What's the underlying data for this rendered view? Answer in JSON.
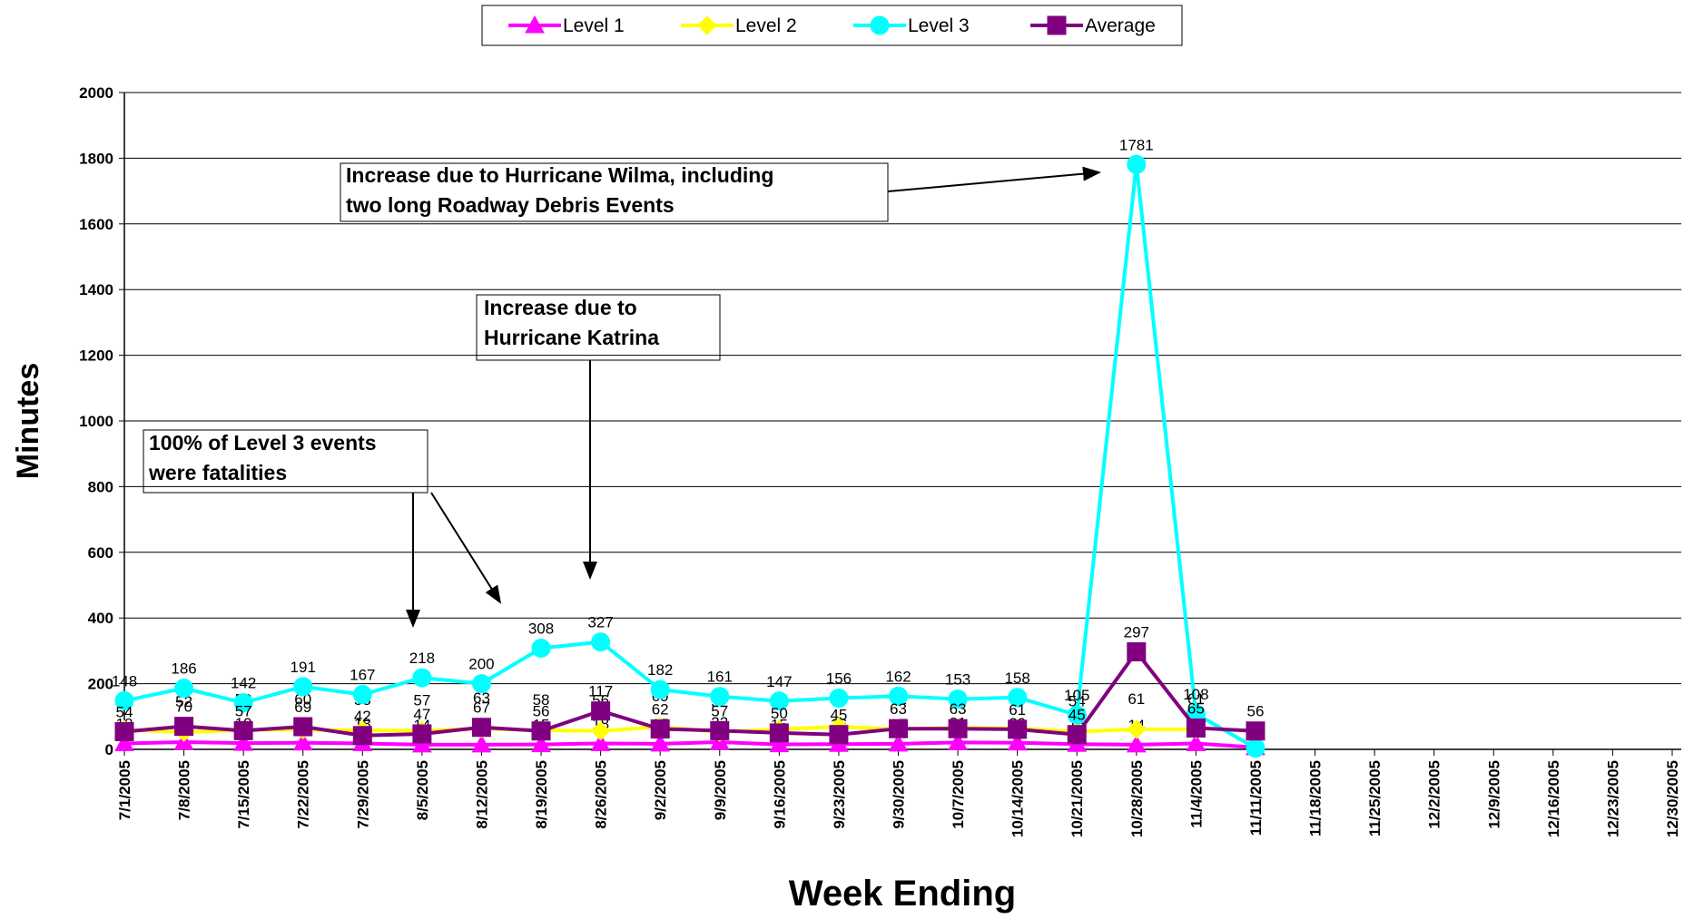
{
  "chart_data": {
    "type": "line",
    "categories": [
      "7/1/2005",
      "7/8/2005",
      "7/15/2005",
      "7/22/2005",
      "7/29/2005",
      "8/5/2005",
      "8/12/2005",
      "8/19/2005",
      "8/26/2005",
      "9/2/2005",
      "9/9/2005",
      "9/16/2005",
      "9/23/2005",
      "9/30/2005",
      "10/7/2005",
      "10/14/2005",
      "10/21/2005",
      "10/28/2005",
      "11/4/2005",
      "11/11/2005",
      "11/18/2005",
      "11/25/2005",
      "12/2/2005",
      "12/9/2005",
      "12/16/2005",
      "12/23/2005",
      "12/30/2005"
    ],
    "series": [
      {
        "name": "Level 1",
        "color": "#ff00ff",
        "marker": "triangle",
        "values": [
          18,
          22,
          19,
          20,
          18,
          14,
          14,
          15,
          18,
          17,
          22,
          15,
          16,
          17,
          21,
          20,
          16,
          14,
          18,
          6,
          null,
          null,
          null,
          null,
          null,
          null,
          null
        ]
      },
      {
        "name": "Level 2",
        "color": "#ffff00",
        "marker": "diamond",
        "values": [
          60,
          52,
          59,
          60,
          58,
          57,
          63,
          58,
          56,
          69,
          52,
          61,
          69,
          61,
          66,
          64,
          54,
          61,
          61,
          null,
          null,
          null,
          null,
          null,
          null,
          null,
          null
        ]
      },
      {
        "name": "Level 3",
        "color": "#00ffff",
        "marker": "circle",
        "values": [
          148,
          186,
          142,
          191,
          167,
          218,
          200,
          308,
          327,
          182,
          161,
          147,
          156,
          162,
          153,
          158,
          105,
          1781,
          108,
          4,
          null,
          null,
          null,
          null,
          null,
          null,
          null
        ]
      },
      {
        "name": "Average",
        "color": "#800080",
        "marker": "square",
        "values": [
          54,
          70,
          57,
          69,
          42,
          47,
          67,
          56,
          117,
          62,
          57,
          50,
          45,
          63,
          63,
          61,
          45,
          297,
          65,
          56,
          null,
          null,
          null,
          null,
          null,
          null,
          null
        ]
      }
    ],
    "ylim": [
      0,
      2000
    ],
    "yticks": [
      0,
      200,
      400,
      600,
      800,
      1000,
      1200,
      1400,
      1600,
      1800,
      2000
    ],
    "grid": true,
    "y_label": "Minutes",
    "x_label": "Week Ending",
    "annotations": [
      {
        "lines": [
          "Increase due to Hurricane Wilma, including",
          "two long Roadway Debris Events"
        ]
      },
      {
        "lines": [
          "Increase due to",
          "Hurricane Katrina"
        ]
      },
      {
        "lines": [
          "100% of Level 3 events",
          "were fatalities"
        ]
      }
    ]
  }
}
